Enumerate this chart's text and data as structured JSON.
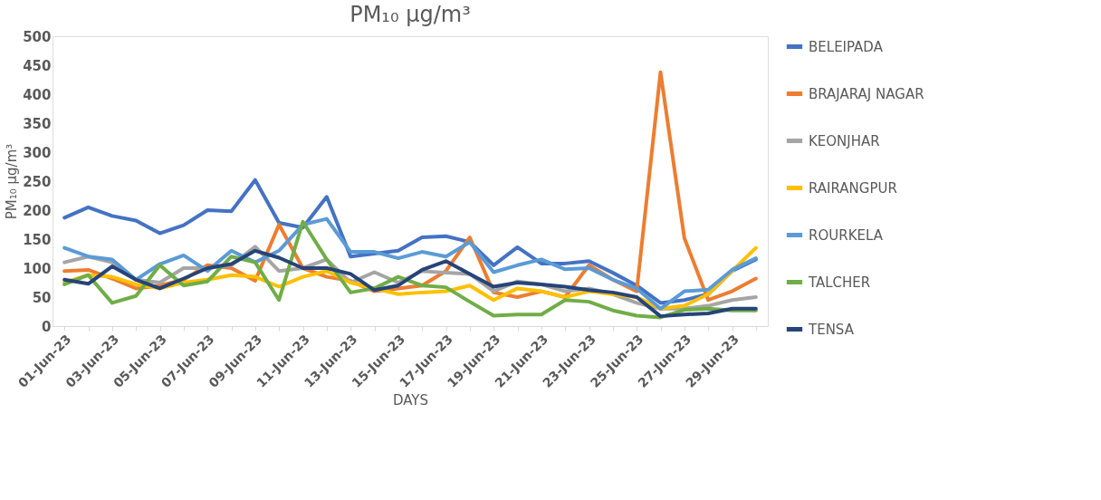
{
  "chart_data": {
    "type": "line",
    "title": "PM₁₀ µg/m³",
    "xlabel": "DAYS",
    "ylabel": "PM₁₀ µg/m³",
    "categories": [
      "01-Jun-23",
      null,
      "03-Jun-23",
      null,
      "05-Jun-23",
      null,
      "07-Jun-23",
      null,
      "09-Jun-23",
      null,
      "11-Jun-23",
      null,
      "13-Jun-23",
      null,
      "15-Jun-23",
      null,
      "17-Jun-23",
      null,
      "19-Jun-23",
      null,
      "21-Jun-23",
      null,
      "23-Jun-23",
      null,
      "25-Jun-23",
      null,
      "27-Jun-23",
      null,
      "29-Jun-23",
      null
    ],
    "ylim": [
      0,
      500
    ],
    "yticks": [
      0,
      50,
      100,
      150,
      200,
      250,
      300,
      350,
      400,
      450,
      500
    ],
    "grid": false,
    "legend": "right",
    "marker": "none",
    "line_style": "solid",
    "series": [
      {
        "name": "BELEIPADA",
        "color": "#4472c4",
        "values": [
          187,
          205,
          190,
          182,
          160,
          174,
          200,
          198,
          252,
          178,
          170,
          223,
          120,
          125,
          130,
          153,
          155,
          145,
          105,
          136,
          108,
          108,
          112,
          92,
          70,
          40,
          45,
          55,
          95,
          115
        ]
      },
      {
        "name": "BRAJARAJ NAGAR",
        "color": "#ed7d31",
        "values": [
          95,
          97,
          82,
          65,
          70,
          80,
          105,
          100,
          78,
          175,
          100,
          85,
          78,
          60,
          65,
          70,
          95,
          153,
          58,
          50,
          60,
          50,
          105,
          80,
          60,
          438,
          152,
          45,
          60,
          82
        ]
      },
      {
        "name": "KEONJHAR",
        "color": "#a5a5a5",
        "values": [
          110,
          120,
          110,
          80,
          75,
          100,
          100,
          105,
          137,
          95,
          100,
          115,
          75,
          93,
          75,
          95,
          92,
          90,
          60,
          77,
          72,
          60,
          65,
          55,
          40,
          30,
          30,
          35,
          45,
          50
        ]
      },
      {
        "name": "RAIRANGPUR",
        "color": "#ffc000",
        "values": [
          75,
          88,
          85,
          72,
          65,
          75,
          80,
          88,
          85,
          68,
          85,
          95,
          75,
          65,
          55,
          58,
          60,
          70,
          45,
          65,
          60,
          50,
          60,
          55,
          50,
          30,
          35,
          55,
          95,
          135
        ]
      },
      {
        "name": "ROURKELA",
        "color": "#5b9bd5",
        "values": [
          135,
          120,
          115,
          80,
          107,
          122,
          95,
          130,
          110,
          130,
          175,
          185,
          128,
          128,
          117,
          128,
          120,
          145,
          93,
          105,
          115,
          98,
          100,
          80,
          65,
          30,
          60,
          63,
          97,
          117
        ]
      },
      {
        "name": "TALCHER",
        "color": "#70ad47",
        "values": [
          72,
          88,
          40,
          52,
          105,
          70,
          77,
          120,
          110,
          45,
          180,
          115,
          58,
          65,
          85,
          70,
          67,
          42,
          18,
          20,
          20,
          45,
          42,
          27,
          18,
          15,
          28,
          30,
          27,
          27
        ]
      },
      {
        "name": "TENSA",
        "color": "#264478",
        "values": [
          80,
          73,
          103,
          80,
          65,
          82,
          100,
          107,
          130,
          118,
          100,
          100,
          90,
          62,
          70,
          97,
          112,
          90,
          68,
          75,
          72,
          68,
          62,
          58,
          50,
          17,
          20,
          22,
          30,
          30
        ]
      }
    ]
  }
}
